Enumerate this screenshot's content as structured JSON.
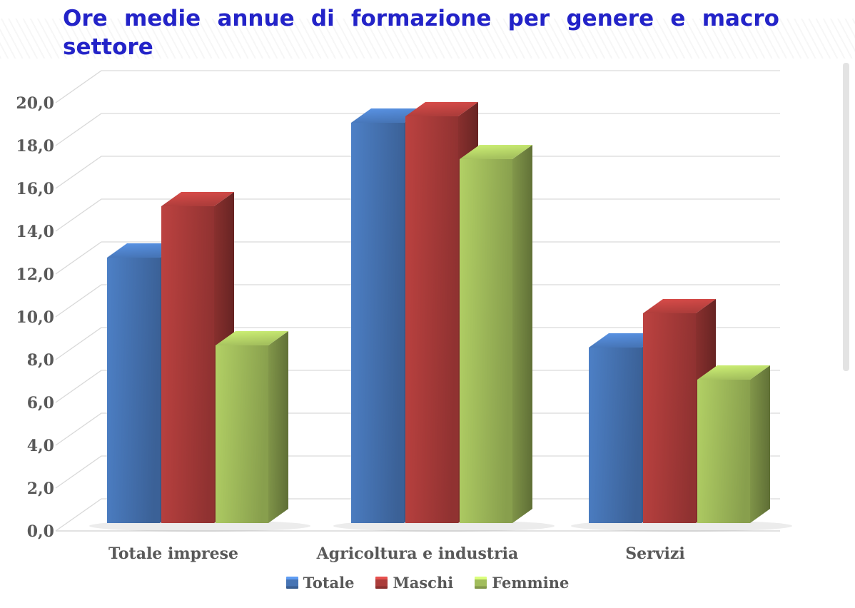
{
  "title": {
    "text": "Ore medie annue di formazione per genere e macro settore",
    "line1": "Ore medie annue di formazione per genere e macro",
    "line2": "settore",
    "color": "#2323c8"
  },
  "chart_data": {
    "type": "bar",
    "style": "3d-column",
    "title": "Ore medie annue di formazione per genere e macro settore",
    "categories": [
      "Totale imprese",
      "Agricoltura e industria",
      "Servizi"
    ],
    "series": [
      {
        "name": "Totale",
        "color": "#4674b4",
        "values": [
          12.4,
          18.7,
          8.2
        ]
      },
      {
        "name": "Maschi",
        "color": "#ab3c3a",
        "values": [
          14.8,
          19.0,
          9.8
        ]
      },
      {
        "name": "Femmine",
        "color": "#a2bd5c",
        "values": [
          8.3,
          17.0,
          6.7
        ]
      }
    ],
    "xlabel": "",
    "ylabel": "",
    "ylim": [
      0,
      20
    ],
    "ytick_step": 2,
    "ytick_labels": [
      "0,0",
      "2,0",
      "4,0",
      "6,0",
      "8,0",
      "10,0",
      "12,0",
      "14,0",
      "16,0",
      "18,0",
      "20,0"
    ],
    "grid": true,
    "legend_position": "bottom",
    "axis_text_color": "#595959",
    "grid_color": "#d9d9d9"
  }
}
